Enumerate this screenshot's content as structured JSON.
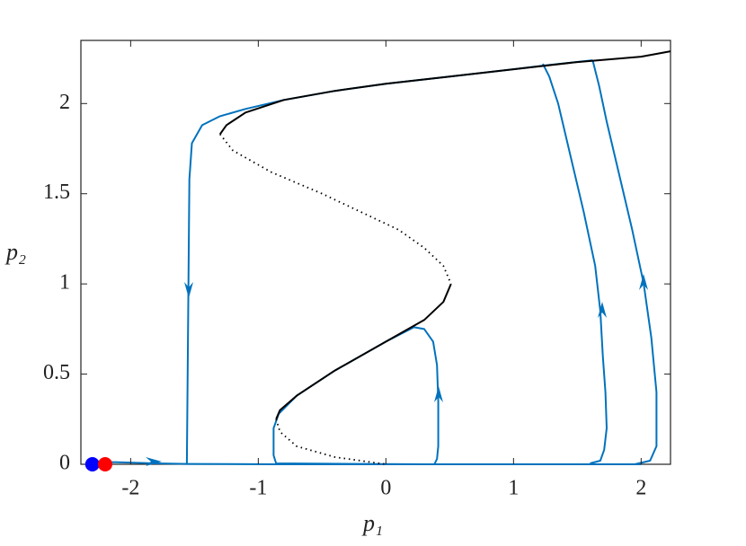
{
  "chart_data": {
    "type": "line",
    "xlabel": "p₁",
    "ylabel": "p₂",
    "xlim": [
      -2.39,
      2.23
    ],
    "ylim": [
      0,
      2.35
    ],
    "xticks": [
      -2,
      -1,
      0,
      1,
      2
    ],
    "yticks": [
      0,
      0.5,
      1,
      1.5,
      2
    ],
    "series": [
      {
        "color": "#0072bd",
        "dash": "solid",
        "x": [
          -2.3,
          -1.8,
          -1.56,
          -0.87,
          0.4,
          1.6,
          2.0
        ],
        "values": [
          0.015,
          0.005,
          0.002,
          0,
          0,
          0,
          0
        ]
      },
      {
        "color": "#0072bd",
        "dash": "solid",
        "x": [
          1.6,
          1.68,
          1.71,
          1.73,
          1.72,
          1.7,
          1.68,
          1.64,
          1.55,
          1.45,
          1.35,
          1.28,
          1.23
        ],
        "values": [
          0.005,
          0.02,
          0.08,
          0.2,
          0.4,
          0.6,
          0.85,
          1.1,
          1.4,
          1.7,
          2.0,
          2.15,
          2.22
        ]
      },
      {
        "color": "#0072bd",
        "dash": "solid",
        "x": [
          1.95,
          2.07,
          2.12,
          2.12,
          2.08,
          2.02,
          1.93,
          1.83,
          1.73,
          1.67,
          1.62
        ],
        "values": [
          0.0,
          0.02,
          0.1,
          0.4,
          0.7,
          1.0,
          1.3,
          1.6,
          1.9,
          2.1,
          2.24
        ]
      },
      {
        "color": "#0072bd",
        "dash": "solid",
        "x": [
          1.62,
          1.23,
          1.0,
          0.5,
          0.0,
          -0.4,
          -0.8,
          -1.1,
          -1.3,
          -1.44,
          -1.52,
          -1.54,
          -1.56
        ],
        "values": [
          2.24,
          2.21,
          2.19,
          2.15,
          2.11,
          2.07,
          2.02,
          1.97,
          1.93,
          1.88,
          1.78,
          1.58,
          0.0
        ]
      },
      {
        "color": "#0072bd",
        "dash": "solid",
        "x": [
          0.38,
          0.4,
          0.41,
          0.41,
          0.4,
          0.37,
          0.3,
          0.22,
          0.0,
          -0.4,
          -0.7,
          -0.84,
          -0.88,
          -0.88,
          -0.86,
          0.3
        ],
        "values": [
          0.0,
          0.03,
          0.1,
          0.35,
          0.55,
          0.68,
          0.75,
          0.76,
          0.68,
          0.52,
          0.38,
          0.28,
          0.2,
          0.05,
          0.005,
          0.0
        ]
      },
      {
        "color": "#000000",
        "dash": "solid",
        "x": [
          -1.3,
          -1.25,
          -1.1,
          -0.8,
          -0.4,
          0,
          0.5,
          1,
          1.5,
          2,
          2.23
        ],
        "values": [
          1.83,
          1.88,
          1.95,
          2.02,
          2.07,
          2.11,
          2.15,
          2.19,
          2.23,
          2.26,
          2.29
        ]
      },
      {
        "color": "#000000",
        "dash": "dotted",
        "x": [
          -1.3,
          -1.2,
          -0.9,
          -0.5,
          -0.2,
          0.1,
          0.3,
          0.45,
          0.51
        ],
        "values": [
          1.83,
          1.74,
          1.62,
          1.5,
          1.4,
          1.3,
          1.2,
          1.1,
          1.0
        ]
      },
      {
        "color": "#000000",
        "dash": "solid",
        "x": [
          0.51,
          0.45,
          0.3,
          0,
          -0.4,
          -0.7,
          -0.83,
          -0.86
        ],
        "values": [
          1.0,
          0.9,
          0.8,
          0.68,
          0.52,
          0.38,
          0.3,
          0.25
        ]
      },
      {
        "color": "#000000",
        "dash": "dotted",
        "x": [
          -0.86,
          -0.83,
          -0.7,
          -0.4,
          -0.1,
          0
        ],
        "values": [
          0.25,
          0.18,
          0.1,
          0.04,
          0.01,
          0
        ]
      }
    ],
    "markers": [
      {
        "x": -2.3,
        "y": 0,
        "color": "#0000ff"
      },
      {
        "x": -2.2,
        "y": 0,
        "color": "#ff0000"
      }
    ]
  }
}
